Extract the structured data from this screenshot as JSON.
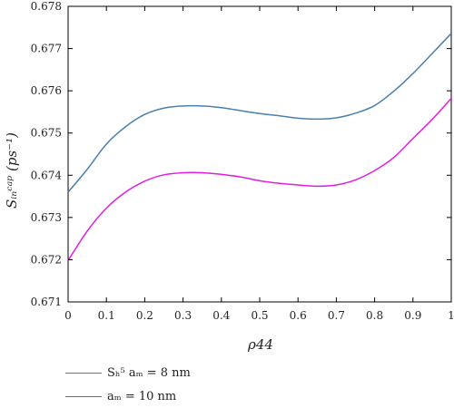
{
  "chart_data": {
    "type": "line",
    "title": "",
    "xlabel": "ρ44",
    "ylabel": "Sᵢₙᶜᵃᵖ (ps⁻¹)",
    "xlim": [
      0,
      1
    ],
    "ylim": [
      0.671,
      0.678
    ],
    "xticks": [
      "0",
      "0.1",
      "0.2",
      "0.3",
      "0.4",
      "0.5",
      "0.6",
      "0.7",
      "0.8",
      "0.9",
      "1"
    ],
    "yticks": [
      "0.671",
      "0.672",
      "0.673",
      "0.674",
      "0.675",
      "0.676",
      "0.677",
      "0.678"
    ],
    "grid": false,
    "legend_position": "bottom",
    "x": [
      0,
      0.05,
      0.1,
      0.15,
      0.2,
      0.25,
      0.3,
      0.35,
      0.4,
      0.45,
      0.5,
      0.55,
      0.6,
      0.65,
      0.7,
      0.75,
      0.8,
      0.85,
      0.9,
      0.95,
      1
    ],
    "series": [
      {
        "name": "S_h^5 a_M = 8 nm",
        "legend_label": "Sₕ⁵ aₘ = 8 nm",
        "color": "#4a7fae",
        "values": [
          0.6736,
          0.67414,
          0.67474,
          0.67515,
          0.67544,
          0.67559,
          0.67564,
          0.67564,
          0.6756,
          0.67553,
          0.67546,
          0.67541,
          0.67535,
          0.67533,
          0.67536,
          0.67547,
          0.67565,
          0.67599,
          0.67641,
          0.67688,
          0.67736
        ]
      },
      {
        "name": "a_M = 10 nm",
        "legend_label": "aₘ = 10 nm",
        "color": "#e01ee0",
        "values": [
          0.67198,
          0.67268,
          0.67322,
          0.6736,
          0.67386,
          0.67401,
          0.67406,
          0.67406,
          0.67402,
          0.67396,
          0.67387,
          0.67381,
          0.67377,
          0.67374,
          0.67377,
          0.67389,
          0.67411,
          0.67442,
          0.67487,
          0.67532,
          0.67582
        ]
      }
    ]
  }
}
